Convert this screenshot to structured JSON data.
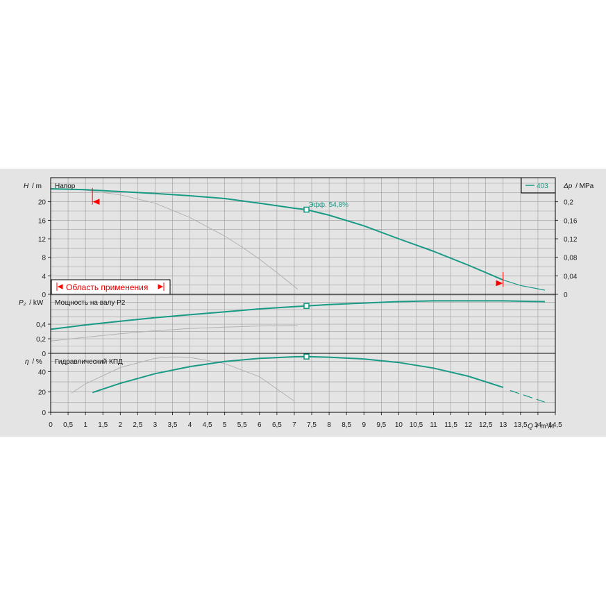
{
  "chart_data": {
    "type": "line",
    "x_axis": {
      "label_symbol": "Q",
      "label_unit": "/ m³/h",
      "range": [
        0,
        14.5
      ],
      "ticks": [
        "0",
        "0,5",
        "1",
        "1,5",
        "2",
        "2,5",
        "3",
        "3,5",
        "4",
        "4,5",
        "5",
        "5,5",
        "6",
        "6,5",
        "7",
        "7,5",
        "8",
        "8,5",
        "9",
        "9,5",
        "10",
        "10,5",
        "11",
        "11,5",
        "12",
        "12,5",
        "13",
        "13,5",
        "14",
        "14,5"
      ]
    },
    "legend": {
      "label": "403",
      "placement": "top-right"
    },
    "panels": [
      {
        "name": "head",
        "title": "Напор",
        "ylabel_symbol": "H",
        "ylabel_unit": "/ m",
        "y_range": [
          0,
          24
        ],
        "y_ticks": [
          "0",
          "4",
          "8",
          "12",
          "16",
          "20"
        ],
        "y_ticks_right": [
          "0",
          "0,04",
          "0,08",
          "0,12",
          "0,16",
          "0,2"
        ],
        "y_right_symbol": "Δp",
        "y_right_unit": "/ MPa",
        "series_main": {
          "name": "403",
          "x": [
            0,
            1,
            2,
            3,
            4,
            5,
            6,
            7,
            7.35,
            8,
            9,
            10,
            11,
            12,
            13
          ],
          "y": [
            22.8,
            22.6,
            22.2,
            21.8,
            21.3,
            20.7,
            19.7,
            18.6,
            18.3,
            17.1,
            14.8,
            12.0,
            9.3,
            6.3,
            3.1
          ]
        },
        "series_extension": {
          "x": [
            13,
            13.5,
            14.2
          ],
          "y": [
            3.1,
            1.9,
            0.9
          ]
        },
        "series_grey": {
          "x": [
            0,
            1,
            2,
            3,
            4,
            5,
            5.5,
            6,
            6.5,
            7,
            7.1
          ],
          "y": [
            22.9,
            22.5,
            21.5,
            19.7,
            16.6,
            12.6,
            10.2,
            7.6,
            4.7,
            1.7,
            1.1
          ]
        },
        "operating_point": {
          "x": 7.35,
          "y": 18.3,
          "label": "Эфф.  54,8%"
        },
        "range_markers": [
          {
            "x": 1.2,
            "y": 20.0
          },
          {
            "x": 13.0,
            "y": 2.4
          }
        ],
        "application_range_label": "Область применения"
      },
      {
        "name": "power",
        "title": "Мощность на валу P2",
        "ylabel_symbol": "P₂",
        "ylabel_unit": "/ kW",
        "y_range": [
          0,
          0.8
        ],
        "y_ticks": [
          "0",
          "0,2",
          "0,4"
        ],
        "series_main": {
          "name": "403",
          "x": [
            0,
            1,
            2,
            3,
            4,
            5,
            6,
            7,
            7.35,
            8,
            9,
            10,
            11,
            12,
            13,
            14.2
          ],
          "y": [
            0.33,
            0.39,
            0.44,
            0.49,
            0.53,
            0.57,
            0.61,
            0.64,
            0.65,
            0.67,
            0.69,
            0.71,
            0.72,
            0.72,
            0.72,
            0.71
          ]
        },
        "series_grey": {
          "x": [
            0,
            1,
            2,
            3,
            4,
            5,
            6,
            7,
            7.1
          ],
          "y": [
            0.17,
            0.22,
            0.27,
            0.31,
            0.34,
            0.36,
            0.375,
            0.38,
            0.375
          ]
        },
        "operating_point": {
          "x": 7.35,
          "y": 0.65
        }
      },
      {
        "name": "efficiency",
        "title": "Гидравлический КПД",
        "ylabel_symbol": "η",
        "ylabel_unit": "/ %",
        "y_range": [
          0,
          58
        ],
        "y_ticks": [
          "0",
          "20",
          "40"
        ],
        "series_main": {
          "name": "403",
          "x": [
            1.2,
            2,
            3,
            4,
            5,
            6,
            7,
            7.35,
            8,
            9,
            10,
            11,
            12,
            13
          ],
          "y": [
            19.5,
            28.5,
            38.0,
            45.0,
            50.0,
            53.0,
            54.6,
            54.8,
            54.2,
            52.5,
            49.0,
            43.5,
            35.5,
            24.5
          ]
        },
        "series_extension": {
          "x": [
            13.2,
            14.2
          ],
          "y": [
            21.5,
            10.0
          ]
        },
        "series_grey": {
          "x": [
            0.6,
            1,
            2,
            3,
            3.5,
            4,
            5,
            6,
            7
          ],
          "y": [
            19,
            28,
            44,
            53,
            54.5,
            54,
            48,
            35,
            11
          ]
        },
        "operating_point": {
          "x": 7.35,
          "y": 54.8
        }
      }
    ]
  },
  "colors": {
    "main": "#189a85",
    "grey": "#b2b2b2",
    "red": "#ff0000",
    "grid": "#9c9c9c",
    "frame": "#000000"
  }
}
